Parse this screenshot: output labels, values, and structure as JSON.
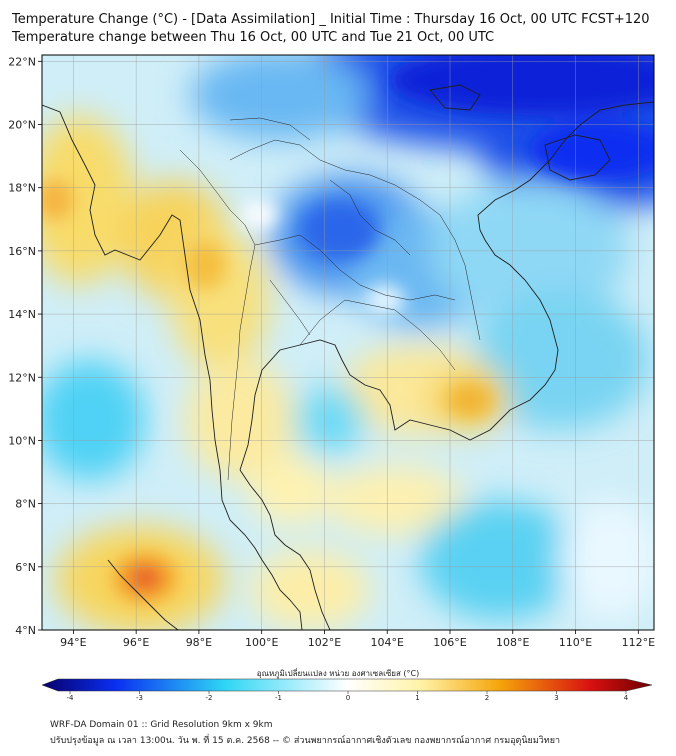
{
  "header": {
    "title_line1": "Temperature Change (°C) - [Data Assimilation] _ Initial Time : Thursday 16 Oct, 00 UTC FCST+120",
    "title_line2": "Temperature change between Thu 16 Oct, 00 UTC and Tue 21 Oct, 00 UTC"
  },
  "map": {
    "lon_range": [
      93,
      112.5
    ],
    "lat_range": [
      4,
      22.2
    ],
    "lon_ticks": [
      "94°E",
      "96°E",
      "98°E",
      "100°E",
      "102°E",
      "104°E",
      "106°E",
      "108°E",
      "110°E",
      "112°E"
    ],
    "lat_ticks": [
      "4°N",
      "6°N",
      "8°N",
      "10°N",
      "12°N",
      "14°N",
      "16°N",
      "18°N",
      "20°N",
      "22°N"
    ],
    "grid": true
  },
  "colorbar": {
    "title": "อุณหภูมิเปลี่ยนแปลง หน่วย องศาเซลเซียส (°C)",
    "range": [
      -4,
      4
    ],
    "tick_labels": [
      "-4",
      "-3",
      "-2",
      "-1",
      "0",
      "1",
      "2",
      "3",
      "4"
    ],
    "colors": {
      "neg_strong": "#08006a",
      "neg_mid": "#0a2ef0",
      "neg_light": "#2fd6f5",
      "neutral": "#ffffff",
      "pos_light": "#fff3a8",
      "pos_mid": "#f5a50a",
      "pos_strong": "#d81010",
      "pos_extreme": "#6a0000"
    }
  },
  "footer": {
    "line1": "WRF-DA Domain 01 :: Grid Resolution 9km x 9km",
    "line2": "ปรับปรุงข้อมูล ณ เวลา 13:00น. วัน พ. ที่ 15 ต.ค. 2568 -- © ส่วนพยากรณ์อากาศเชิงตัวเลข กองพยากรณ์อากาศ กรมอุตุนิยมวิทยา"
  }
}
